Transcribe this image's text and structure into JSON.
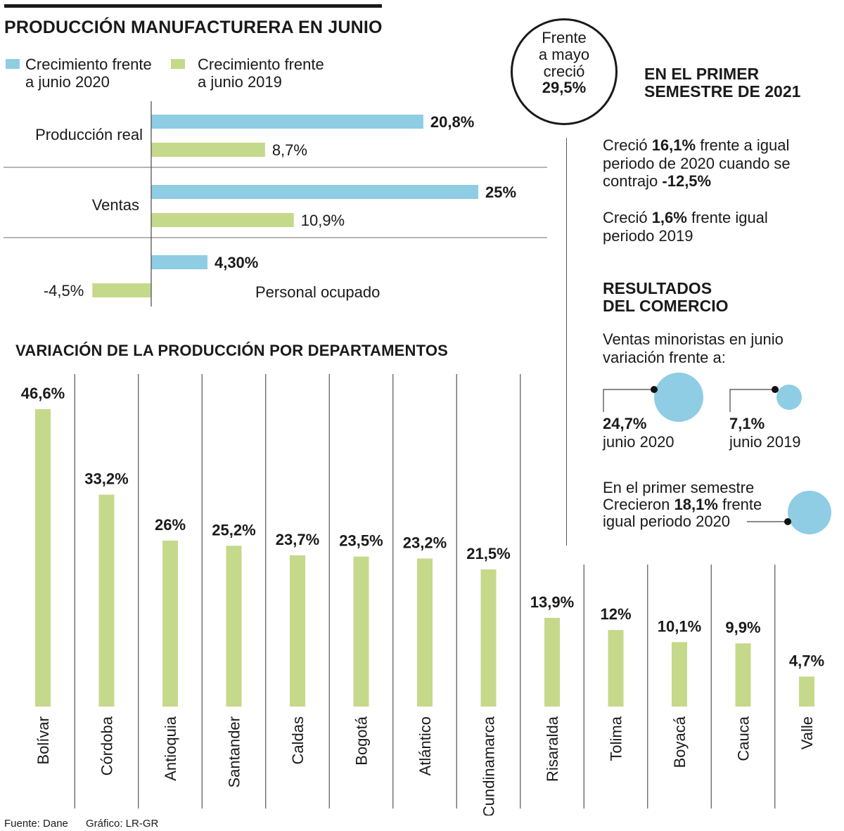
{
  "colors": {
    "blue": "#8ecde4",
    "green": "#c5d98a",
    "text": "#1a1a1a",
    "grid": "#8a8a8a"
  },
  "title": "PRODUCCIÓN MANUFACTURERA EN JUNIO",
  "legend": {
    "items": [
      {
        "line1": "Crecimiento frente",
        "line2": "a junio 2020"
      },
      {
        "line1": "Crecimiento frente",
        "line2": "a junio 2019"
      }
    ]
  },
  "callout": {
    "line1": "Frente",
    "line2": "a mayo",
    "line3": "creció",
    "value": "29,5%"
  },
  "semestre": {
    "title_line1": "EN EL PRIMER",
    "title_line2": "SEMESTRE DE 2021",
    "p1": {
      "a": "Creció ",
      "b": "16,1%",
      "c": " frente a igual",
      "d": "periodo de 2020 cuando se",
      "e": "contrajo ",
      "f": "-12,5%"
    },
    "p2": {
      "a": "Creció ",
      "b": "1,6%",
      "c": " frente igual",
      "d": "periodo 2019"
    }
  },
  "comercio": {
    "title_line1": "RESULTADOS",
    "title_line2": "DEL COMERCIO",
    "subtitle_line1": "Ventas minoristas en junio",
    "subtitle_line2": "variación frente a:",
    "bubbles": [
      {
        "value": "24,7%",
        "label": "junio 2020"
      },
      {
        "value": "7,1%",
        "label": "junio 2019"
      }
    ],
    "semestre_line1": "En el primer semestre",
    "semestre_line2a": "Crecieron ",
    "semestre_line2b": "18,1%",
    "semestre_line2c": " frente",
    "semestre_line3": "igual periodo 2020"
  },
  "footer": {
    "source": "Fuente: Dane",
    "credit": "Gráfico: LR-GR"
  },
  "chart_data": [
    {
      "type": "bar",
      "orientation": "horizontal",
      "title": "PRODUCCIÓN MANUFACTURERA EN JUNIO",
      "categories": [
        "Producción real",
        "Ventas",
        "Personal ocupado"
      ],
      "series": [
        {
          "name": "Crecimiento frente a junio 2020",
          "values": [
            20.8,
            25,
            4.3
          ],
          "labels": [
            "20,8%",
            "25%",
            "4,30%"
          ]
        },
        {
          "name": "Crecimiento frente a junio 2019",
          "values": [
            8.7,
            10.9,
            -4.5
          ],
          "labels": [
            "8,7%",
            "10,9%",
            "-4,5%"
          ]
        }
      ],
      "xlim": [
        -5.5,
        26
      ]
    },
    {
      "type": "bar",
      "orientation": "vertical",
      "title": "VARIACIÓN DE LA PRODUCCIÓN POR DEPARTAMENTOS",
      "categories": [
        "Bolívar",
        "Córdoba",
        "Antioquia",
        "Santander",
        "Caldas",
        "Bogotá",
        "Atlántico",
        "Cundinamarca",
        "Risaralda",
        "Tolima",
        "Boyacá",
        "Cauca",
        "Valle"
      ],
      "values": [
        46.6,
        33.2,
        26,
        25.2,
        23.7,
        23.5,
        23.2,
        21.5,
        13.9,
        12,
        10.1,
        9.9,
        4.7
      ],
      "labels": [
        "46,6%",
        "33,2%",
        "26%",
        "25,2%",
        "23,7%",
        "23,5%",
        "23,2%",
        "21,5%",
        "13,9%",
        "12%",
        "10,1%",
        "9,9%",
        "4,7%"
      ],
      "ylim": [
        0,
        46.6
      ]
    }
  ]
}
